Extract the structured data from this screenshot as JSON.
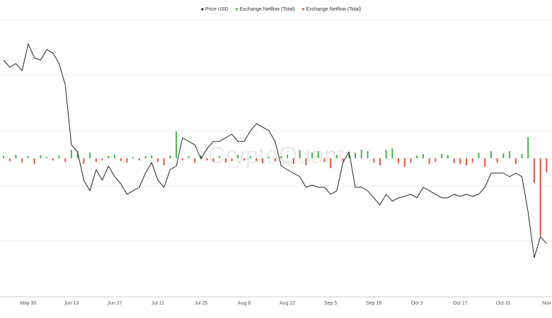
{
  "chart_data": {
    "type": "line",
    "watermark": "CryptoQuant",
    "categories": [
      null,
      null,
      null,
      null,
      "May 30",
      null,
      null,
      null,
      null,
      null,
      null,
      "Jun 13",
      null,
      null,
      null,
      null,
      null,
      null,
      "Jun 27",
      null,
      null,
      null,
      null,
      null,
      null,
      "Jul 11",
      null,
      null,
      null,
      null,
      null,
      null,
      "Jul 25",
      null,
      null,
      null,
      null,
      null,
      null,
      "Aug 8",
      null,
      null,
      null,
      null,
      null,
      null,
      "Aug 22",
      null,
      null,
      null,
      null,
      null,
      null,
      "Sep 5",
      null,
      null,
      null,
      null,
      null,
      null,
      "Sep 19",
      null,
      null,
      null,
      null,
      null,
      null,
      "Oct 3",
      null,
      null,
      null,
      null,
      null,
      null,
      "Oct 17",
      null,
      null,
      null,
      null,
      null,
      null,
      "Oct 31",
      null,
      null,
      null,
      null,
      null,
      null,
      "Nov"
    ],
    "ylim": [
      11600,
      33400
    ],
    "y2lim": [
      -39200,
      39200
    ],
    "series": [
      {
        "name": "Price USD",
        "color": "#222222",
        "type": "line",
        "values": [
          30230,
          29670,
          29950,
          29400,
          31510,
          30400,
          30230,
          31060,
          30790,
          29950,
          28280,
          23560,
          23000,
          20780,
          19950,
          21610,
          20780,
          21890,
          21060,
          20500,
          19670,
          19950,
          20220,
          21330,
          22170,
          20780,
          20220,
          21610,
          21890,
          24110,
          23830,
          23560,
          22450,
          23280,
          23830,
          23830,
          24110,
          24390,
          23830,
          23830,
          24670,
          25230,
          24950,
          24670,
          23830,
          21890,
          21610,
          21330,
          21060,
          20220,
          20390,
          20220,
          20220,
          19670,
          19950,
          22170,
          23000,
          20220,
          20220,
          19950,
          19390,
          18830,
          19670,
          19120,
          19390,
          19500,
          19670,
          19390,
          20220,
          19950,
          19670,
          19390,
          19390,
          19670,
          19500,
          19670,
          19500,
          19670,
          20220,
          21330,
          21330,
          21330,
          21060,
          21330,
          21060,
          18280,
          14670,
          16330,
          15780
        ]
      },
      {
        "name": "Exchange Netflow (Total)",
        "color": "#4caf50",
        "type": "bar",
        "axis": "y2",
        "values": [
          600,
          null,
          1000,
          null,
          600,
          null,
          800,
          400,
          null,
          800,
          null,
          2400,
          2000,
          null,
          1600,
          null,
          null,
          600,
          1000,
          null,
          null,
          400,
          null,
          600,
          800,
          null,
          null,
          800,
          7600,
          null,
          600,
          null,
          800,
          null,
          null,
          600,
          null,
          null,
          1000,
          null,
          600,
          null,
          null,
          400,
          null,
          600,
          1000,
          null,
          2400,
          null,
          1600,
          2000,
          null,
          null,
          1000,
          null,
          1200,
          1600,
          2400,
          2000,
          null,
          null,
          2400,
          2800,
          null,
          null,
          null,
          800,
          1200,
          null,
          null,
          1200,
          1000,
          null,
          null,
          null,
          null,
          1600,
          null,
          2000,
          null,
          1400,
          2000,
          null,
          1200,
          6000,
          null,
          null,
          null
        ]
      },
      {
        "name": "Exchange Netflow (Total)",
        "color": "#e5533c",
        "type": "bar",
        "axis": "y2",
        "values": [
          null,
          -800,
          null,
          -1200,
          null,
          -1600,
          null,
          null,
          -600,
          null,
          -1000,
          null,
          null,
          -1600,
          null,
          -1000,
          -600,
          null,
          null,
          -800,
          -1200,
          null,
          -600,
          null,
          null,
          -1000,
          -2000,
          null,
          null,
          -600,
          null,
          -1200,
          null,
          -600,
          -1000,
          null,
          -1200,
          -800,
          null,
          -600,
          null,
          -800,
          -1400,
          null,
          -800,
          null,
          null,
          -1600,
          null,
          -2000,
          null,
          null,
          -1000,
          -2800,
          null,
          -800,
          null,
          null,
          null,
          null,
          -1200,
          -2000,
          null,
          null,
          -1400,
          -2400,
          -1200,
          null,
          null,
          -1600,
          -1000,
          null,
          null,
          -1400,
          -1600,
          -2000,
          -1200,
          null,
          -2400,
          null,
          -1200,
          null,
          null,
          -1600,
          null,
          null,
          -7000,
          -22000,
          -4000
        ]
      }
    ]
  }
}
